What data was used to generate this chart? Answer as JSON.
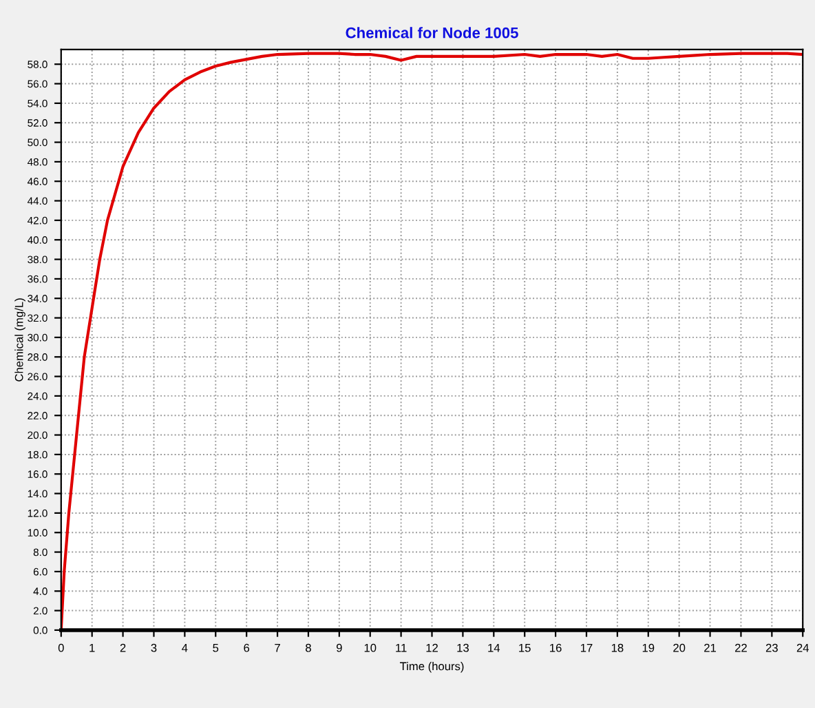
{
  "chart_data": {
    "type": "line",
    "title": "Chemical for Node 1005",
    "xlabel": "Time (hours)",
    "ylabel": "Chemical (mg/L)",
    "x": [
      0,
      0.1,
      0.25,
      0.5,
      0.75,
      1,
      1.25,
      1.5,
      2,
      2.5,
      3,
      3.5,
      4,
      4.5,
      5,
      5.5,
      6,
      6.5,
      7,
      8,
      9,
      9.5,
      10,
      10.5,
      11,
      11.5,
      12,
      13,
      14,
      15,
      15.5,
      16,
      16.5,
      17,
      17.5,
      18,
      18.5,
      19,
      19.5,
      20,
      21,
      22,
      23,
      23.5,
      24
    ],
    "series": [
      {
        "color": "#e00000",
        "values": [
          0,
          6,
          12,
          20,
          28,
          33,
          38,
          42,
          47.5,
          51,
          53.5,
          55.2,
          56.4,
          57.2,
          57.8,
          58.2,
          58.5,
          58.8,
          59,
          59.1,
          59.1,
          59,
          59,
          58.8,
          58.4,
          58.8,
          58.8,
          58.8,
          58.8,
          59,
          58.8,
          59,
          59,
          59,
          58.8,
          59,
          58.6,
          58.6,
          58.7,
          58.8,
          59,
          59.1,
          59.1,
          59.1,
          59
        ]
      }
    ],
    "xlim": [
      0,
      24
    ],
    "xticks": [
      0,
      1,
      2,
      3,
      4,
      5,
      6,
      7,
      8,
      9,
      10,
      11,
      12,
      13,
      14,
      15,
      16,
      17,
      18,
      19,
      20,
      21,
      22,
      23,
      24
    ],
    "ylim": [
      0,
      59.5
    ],
    "yticks": [
      {
        "value": 0,
        "label": "0.0"
      },
      {
        "value": 2,
        "label": "2.0"
      },
      {
        "value": 4,
        "label": "4.0"
      },
      {
        "value": 6,
        "label": "6.0"
      },
      {
        "value": 8,
        "label": "8.0"
      },
      {
        "value": 10,
        "label": "10.0"
      },
      {
        "value": 12,
        "label": "12.0"
      },
      {
        "value": 14,
        "label": "14.0"
      },
      {
        "value": 16,
        "label": "16.0"
      },
      {
        "value": 18,
        "label": "18.0"
      },
      {
        "value": 20,
        "label": "20.0"
      },
      {
        "value": 22,
        "label": "22.0"
      },
      {
        "value": 24,
        "label": "24.0"
      },
      {
        "value": 26,
        "label": "26.0"
      },
      {
        "value": 28,
        "label": "28.0"
      },
      {
        "value": 30,
        "label": "30.0"
      },
      {
        "value": 32,
        "label": "32.0"
      },
      {
        "value": 34,
        "label": "34.0"
      },
      {
        "value": 36,
        "label": "36.0"
      },
      {
        "value": 38,
        "label": "38.0"
      },
      {
        "value": 40,
        "label": "40.0"
      },
      {
        "value": 42,
        "label": "42.0"
      },
      {
        "value": 44,
        "label": "44.0"
      },
      {
        "value": 46,
        "label": "46.0"
      },
      {
        "value": 48,
        "label": "48.0"
      },
      {
        "value": 50,
        "label": "50.0"
      },
      {
        "value": 52,
        "label": "52.0"
      },
      {
        "value": 54,
        "label": "54.0"
      },
      {
        "value": 56,
        "label": "56.0"
      },
      {
        "value": 58,
        "label": "58.0"
      }
    ],
    "grid": true
  }
}
